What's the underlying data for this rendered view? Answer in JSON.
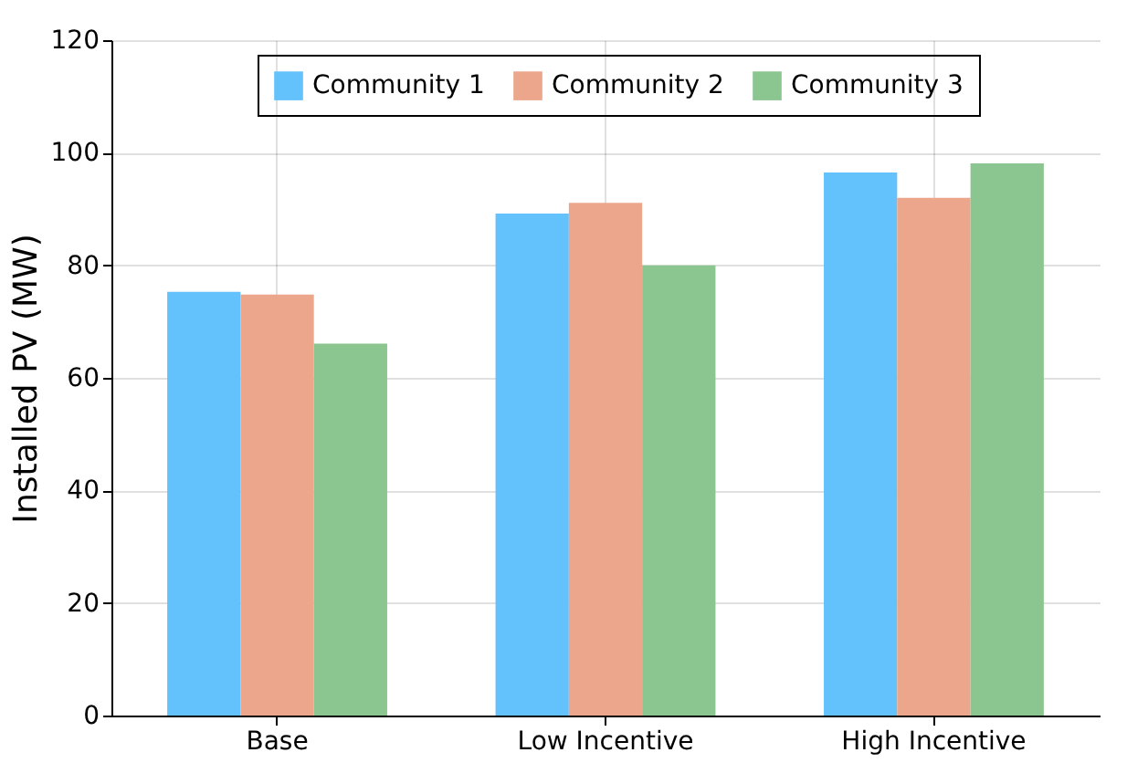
{
  "chart_data": {
    "type": "bar",
    "ylabel": "Installed PV (MW)",
    "categories": [
      "Base",
      "Low Incentive",
      "High Incentive"
    ],
    "series": [
      {
        "name": "Community 1",
        "color": "#63c1fb",
        "values": [
          75.3,
          89.2,
          96.5
        ]
      },
      {
        "name": "Community 2",
        "color": "#eca68b",
        "values": [
          74.8,
          91.1,
          92.0
        ]
      },
      {
        "name": "Community 3",
        "color": "#8bc590",
        "values": [
          66.1,
          80,
          98.1
        ]
      }
    ],
    "ylim": [
      0,
      120
    ],
    "yticks": [
      0,
      20,
      40,
      60,
      80,
      100,
      120
    ],
    "grid": true,
    "legend": "top"
  }
}
